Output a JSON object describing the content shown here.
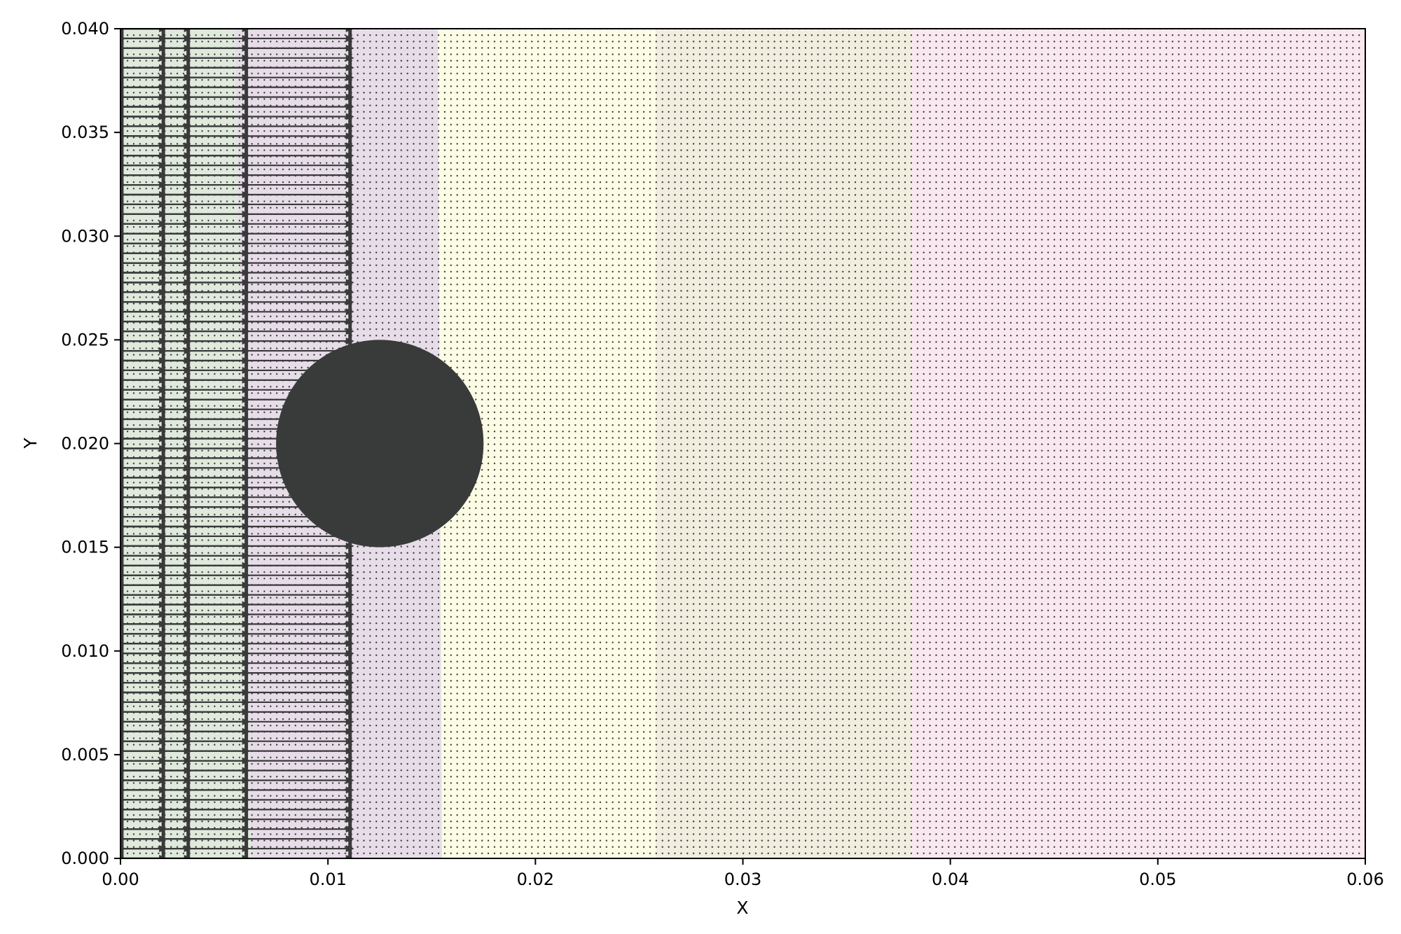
{
  "chart_data": {
    "type": "quiver",
    "title": "",
    "xlabel": "X",
    "ylabel": "Y",
    "xlim": [
      0.0,
      0.06
    ],
    "ylim": [
      0.0,
      0.04
    ],
    "grid": false,
    "legend": "none",
    "x_ticks": [
      0.0,
      0.01,
      0.02,
      0.03,
      0.04,
      0.05,
      0.06
    ],
    "x_tick_labels": [
      "0.00",
      "0.01",
      "0.02",
      "0.03",
      "0.04",
      "0.05",
      "0.06"
    ],
    "y_ticks": [
      0.0,
      0.005,
      0.01,
      0.015,
      0.02,
      0.025,
      0.03,
      0.035,
      0.04
    ],
    "y_tick_labels": [
      "0.000",
      "0.005",
      "0.010",
      "0.015",
      "0.020",
      "0.025",
      "0.030",
      "0.035",
      "0.040"
    ],
    "obstacle": {
      "shape": "circle",
      "center": [
        0.0125,
        0.02
      ],
      "radius": 0.005,
      "color": "#393b3a"
    },
    "background_bands": [
      {
        "x_top": 0.0,
        "x_bottom": 0.0,
        "color": "#dfe9dc"
      },
      {
        "x_top": 0.0055,
        "x_bottom": 0.0063,
        "color": "#e6dde8"
      },
      {
        "x_top": 0.0153,
        "x_bottom": 0.0155,
        "color": "#fdfde6"
      },
      {
        "x_top": 0.0258,
        "x_bottom": 0.0258,
        "color": "#f1eddf"
      },
      {
        "x_top": 0.0381,
        "x_bottom": 0.0381,
        "color": "#fae8f0"
      }
    ],
    "arrow_columns_x": [
      0.0002,
      0.0022,
      0.0034,
      0.0062,
      0.0112
    ],
    "arrow_rows": 86,
    "arrow_color": "#3a3a3a",
    "dot_grid": {
      "nx": 200,
      "ny": 130,
      "color": "#333333"
    }
  }
}
